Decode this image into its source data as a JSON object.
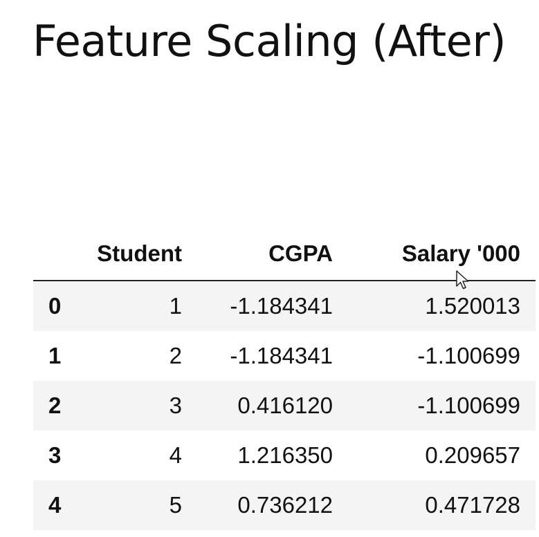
{
  "slide": {
    "title": "Feature Scaling (After)"
  },
  "table": {
    "columns": [
      "",
      "Student",
      "CGPA",
      "Salary '000"
    ],
    "rows": [
      {
        "index": "0",
        "student": "1",
        "cgpa": "-1.184341",
        "salary": "1.520013"
      },
      {
        "index": "1",
        "student": "2",
        "cgpa": "-1.184341",
        "salary": "-1.100699"
      },
      {
        "index": "2",
        "student": "3",
        "cgpa": "0.416120",
        "salary": "-1.100699"
      },
      {
        "index": "3",
        "student": "4",
        "cgpa": "1.216350",
        "salary": "0.209657"
      },
      {
        "index": "4",
        "student": "5",
        "cgpa": "0.736212",
        "salary": "0.471728"
      }
    ]
  },
  "cursor": {
    "icon": "mouse-pointer-icon"
  },
  "colors": {
    "text": "#111111",
    "stripe": "#f4f4f4",
    "background": "#ffffff",
    "header_rule": "#222222"
  }
}
